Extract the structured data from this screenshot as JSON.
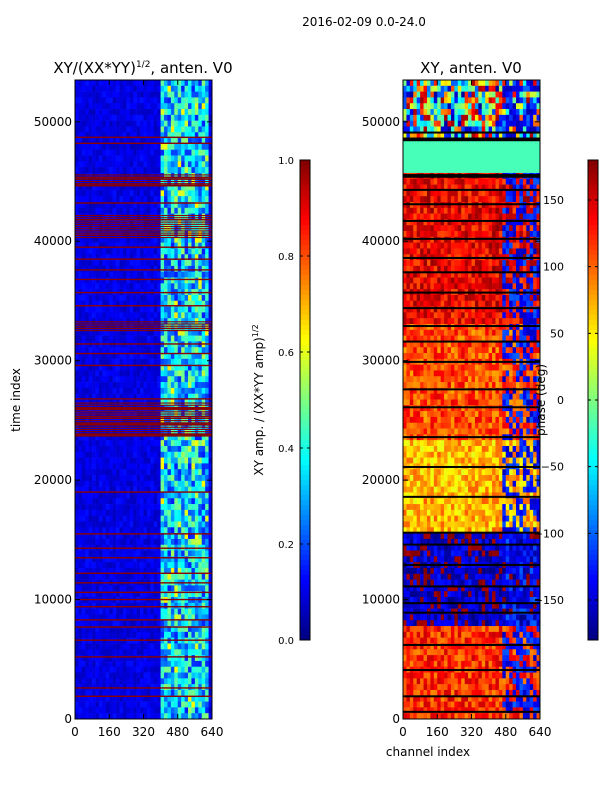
{
  "figure_title": "2016-02-09 0.0-24.0",
  "colors": {
    "jet": [
      "#00007f",
      "#0000ff",
      "#007fff",
      "#00ffff",
      "#7fff7f",
      "#ffff00",
      "#ff7f00",
      "#ff0000",
      "#7f0000"
    ],
    "flag_red": "#8b0000",
    "flag_black": "#000000",
    "background": "#ffffff"
  },
  "chart_data": [
    {
      "type": "heatmap",
      "title": "XY/(XX*YY)^1/2, anten. V0",
      "title_base": "XY/(XX*YY)",
      "title_exp": "1/2",
      "title_rest": ", anten. V0",
      "xlabel": "",
      "ylabel": "time index",
      "xlim": [
        0,
        640
      ],
      "ylim": [
        0,
        53500
      ],
      "xticks": [
        "0",
        "160",
        "320",
        "480",
        "640"
      ],
      "yticks": [
        "0",
        "10000",
        "20000",
        "30000",
        "40000",
        "50000"
      ],
      "colorbar": {
        "label_base": "XY amp. / (XX*YY amp)",
        "label_exp": "1/2",
        "range": [
          0.0,
          1.0
        ],
        "ticks": [
          "0.0",
          "0.2",
          "0.4",
          "0.6",
          "0.8",
          "1.0"
        ]
      },
      "flagged_time_bands": [
        1900,
        2600,
        5200,
        6600,
        7700,
        8300,
        9400,
        10000,
        10600,
        11400,
        12200,
        13500,
        14300,
        15500,
        19000,
        23800,
        24700,
        25300,
        26000,
        26800,
        29600,
        30600,
        31400,
        32700,
        34600,
        35700,
        36800,
        37600,
        38500,
        39500,
        40500,
        41800,
        43200,
        44700,
        45300,
        48200,
        48700
      ],
      "dense_flag_ranges": [
        [
          40300,
          42200
        ],
        [
          32500,
          33300
        ],
        [
          23700,
          26500
        ],
        [
          44500,
          45600
        ]
      ],
      "high_amp_channel_range": [
        400,
        620
      ],
      "background_level": 0.1
    },
    {
      "type": "heatmap",
      "title": "XY, anten. V0",
      "xlabel": "channel index",
      "ylabel": "",
      "xlim": [
        0,
        640
      ],
      "ylim": [
        0,
        53500
      ],
      "xticks": [
        "0",
        "160",
        "320",
        "480",
        "640"
      ],
      "yticks": [
        "0",
        "10000",
        "20000",
        "30000",
        "40000",
        "50000"
      ],
      "colorbar": {
        "label": "phase (deg)",
        "range": [
          -180,
          180
        ],
        "ticks": [
          "-150",
          "-100",
          "-50",
          "0",
          "50",
          "100",
          "150"
        ]
      },
      "constant_phase_range": [
        45500,
        48500
      ],
      "constant_phase_value": -20,
      "flagged_time_bands": [
        600,
        1900,
        4100,
        6200,
        8900,
        9700,
        11100,
        12900,
        14600,
        15600,
        18600,
        21100,
        23600,
        26100,
        27600,
        29900,
        31600,
        32900,
        34400,
        35700,
        37400,
        38600,
        40200,
        41700,
        43100,
        44300,
        45400,
        48600,
        49100
      ],
      "phase_levels_by_time": [
        {
          "from": 0,
          "to": 8000,
          "phase": 120
        },
        {
          "from": 8000,
          "to": 15500,
          "phase": -160
        },
        {
          "from": 15500,
          "to": 23500,
          "phase": 70
        },
        {
          "from": 23500,
          "to": 33000,
          "phase": 110
        },
        {
          "from": 33000,
          "to": 45500,
          "phase": 140
        },
        {
          "from": 48500,
          "to": 53500,
          "phase": 0
        }
      ]
    }
  ]
}
